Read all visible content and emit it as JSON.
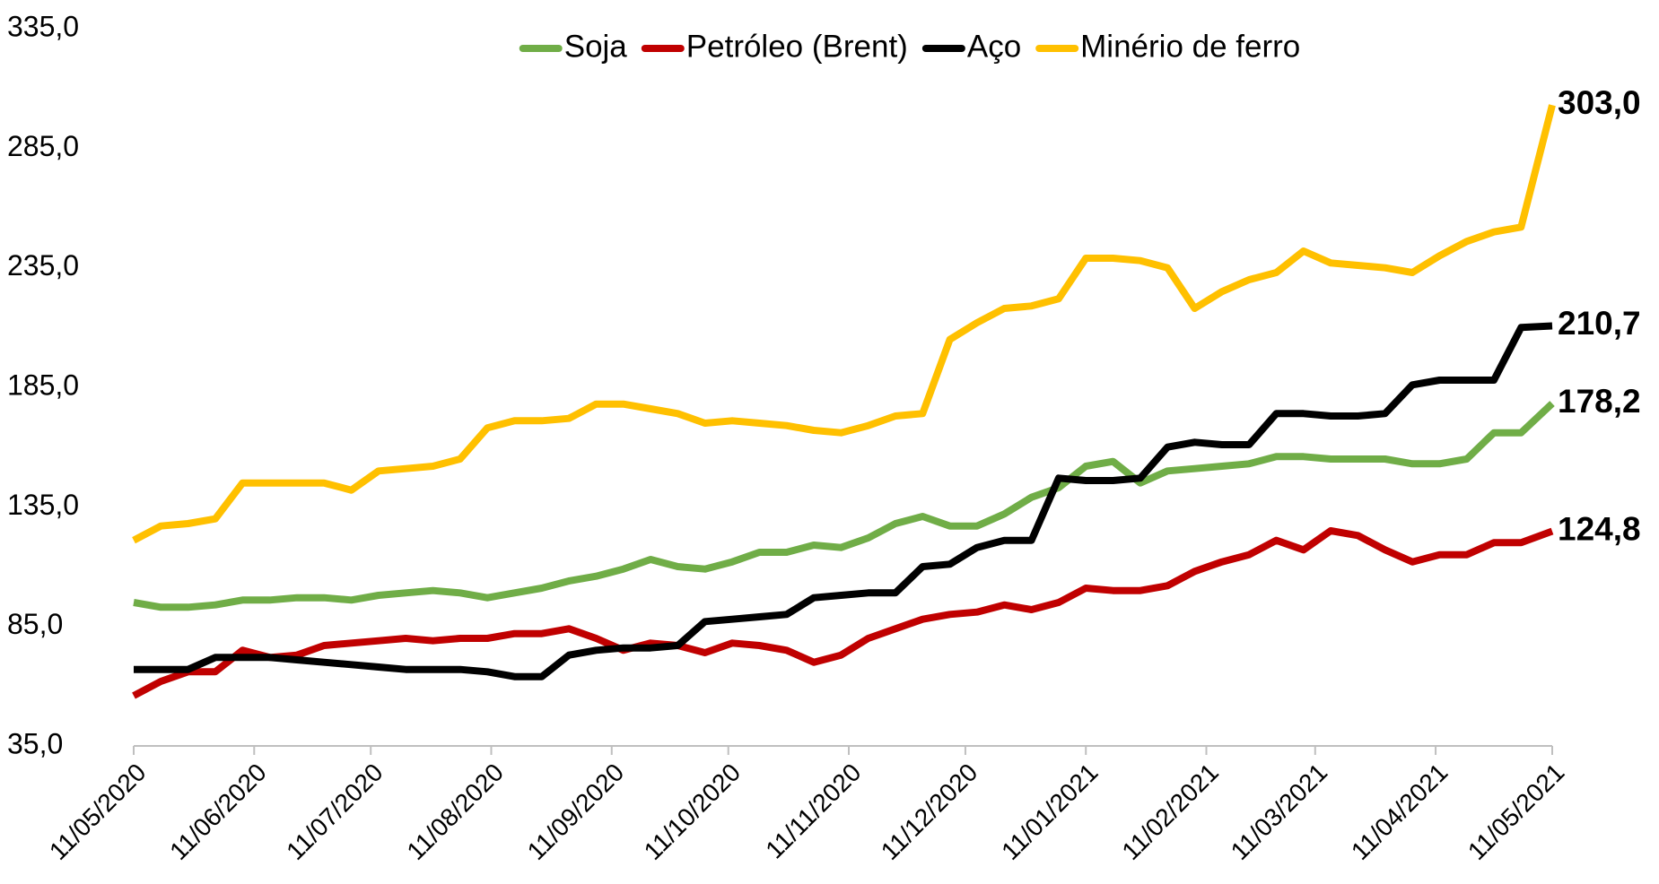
{
  "chart_data": {
    "type": "line",
    "x": [
      "11/05/2020",
      "18/05/2020",
      "25/05/2020",
      "01/06/2020",
      "08/06/2020",
      "15/06/2020",
      "22/06/2020",
      "29/06/2020",
      "06/07/2020",
      "13/07/2020",
      "20/07/2020",
      "27/07/2020",
      "03/08/2020",
      "10/08/2020",
      "17/08/2020",
      "24/08/2020",
      "31/08/2020",
      "07/09/2020",
      "14/09/2020",
      "21/09/2020",
      "28/09/2020",
      "05/10/2020",
      "12/10/2020",
      "19/10/2020",
      "26/10/2020",
      "02/11/2020",
      "09/11/2020",
      "16/11/2020",
      "23/11/2020",
      "30/11/2020",
      "07/12/2020",
      "14/12/2020",
      "21/12/2020",
      "28/12/2020",
      "04/01/2021",
      "11/01/2021",
      "18/01/2021",
      "25/01/2021",
      "01/02/2021",
      "08/02/2021",
      "15/02/2021",
      "22/02/2021",
      "01/03/2021",
      "08/03/2021",
      "15/03/2021",
      "22/03/2021",
      "29/03/2021",
      "05/04/2021",
      "12/04/2021",
      "19/04/2021",
      "26/04/2021",
      "03/05/2021",
      "11/05/2021"
    ],
    "series": [
      {
        "name": "Soja",
        "color": "#70ad47",
        "values": [
          95,
          93,
          93,
          94,
          96,
          96,
          97,
          97,
          96,
          98,
          99,
          100,
          99,
          97,
          99,
          101,
          104,
          106,
          109,
          113,
          110,
          109,
          112,
          116,
          116,
          119,
          118,
          122,
          128,
          131,
          127,
          127,
          132,
          139,
          143,
          152,
          154,
          145,
          150,
          151,
          152,
          153,
          156,
          156,
          155,
          155,
          155,
          153,
          153,
          155,
          166,
          166,
          178.2
        ],
        "value_labels": [
          null,
          null,
          null,
          null,
          null,
          null,
          null,
          null,
          null,
          null,
          null,
          null,
          null,
          null,
          null,
          null,
          null,
          null,
          null,
          null,
          null,
          null,
          null,
          null,
          null,
          null,
          null,
          null,
          null,
          null,
          null,
          null,
          null,
          null,
          null,
          null,
          null,
          null,
          null,
          null,
          null,
          null,
          null,
          null,
          null,
          null,
          null,
          null,
          null,
          null,
          null,
          null,
          "178,2"
        ]
      },
      {
        "name": "Petróleo (Brent)",
        "color": "#c00000",
        "values": [
          56,
          62,
          66,
          66,
          75,
          72,
          73,
          77,
          78,
          79,
          80,
          79,
          80,
          80,
          82,
          82,
          84,
          80,
          75,
          78,
          77,
          74,
          78,
          77,
          75,
          70,
          73,
          80,
          84,
          88,
          90,
          91,
          94,
          92,
          95,
          101,
          100,
          100,
          102,
          108,
          112,
          115,
          121,
          117,
          125,
          123,
          117,
          112,
          115,
          115,
          120,
          120,
          124.8
        ],
        "value_labels": [
          null,
          null,
          null,
          null,
          null,
          null,
          null,
          null,
          null,
          null,
          null,
          null,
          null,
          null,
          null,
          null,
          null,
          null,
          null,
          null,
          null,
          null,
          null,
          null,
          null,
          null,
          null,
          null,
          null,
          null,
          null,
          null,
          null,
          null,
          null,
          null,
          null,
          null,
          null,
          null,
          null,
          null,
          null,
          null,
          null,
          null,
          null,
          null,
          null,
          null,
          null,
          null,
          "124,8"
        ]
      },
      {
        "name": "Aço",
        "color": "#000000",
        "values": [
          67,
          67,
          67,
          72,
          72,
          72,
          71,
          70,
          69,
          68,
          67,
          67,
          67,
          66,
          64,
          64,
          73,
          75,
          76,
          76,
          77,
          87,
          88,
          89,
          90,
          97,
          98,
          99,
          99,
          110,
          111,
          118,
          121,
          121,
          147,
          146,
          146,
          147,
          160,
          162,
          161,
          161,
          174,
          174,
          173,
          173,
          174,
          186,
          188,
          188,
          188,
          210,
          210.7
        ],
        "value_labels": [
          null,
          null,
          null,
          null,
          null,
          null,
          null,
          null,
          null,
          null,
          null,
          null,
          null,
          null,
          null,
          null,
          null,
          null,
          null,
          null,
          null,
          null,
          null,
          null,
          null,
          null,
          null,
          null,
          null,
          null,
          null,
          null,
          null,
          null,
          null,
          null,
          null,
          null,
          null,
          null,
          null,
          null,
          null,
          null,
          null,
          null,
          null,
          null,
          null,
          null,
          null,
          null,
          "210,7"
        ]
      },
      {
        "name": "Minério de ferro",
        "color": "#ffc000",
        "values": [
          121,
          127,
          128,
          130,
          145,
          145,
          145,
          145,
          142,
          150,
          151,
          152,
          155,
          168,
          171,
          171,
          172,
          178,
          178,
          176,
          174,
          170,
          171,
          170,
          169,
          167,
          166,
          169,
          173,
          174,
          205,
          212,
          218,
          219,
          222,
          239,
          239,
          238,
          235,
          218,
          225,
          230,
          233,
          242,
          237,
          236,
          235,
          233,
          240,
          246,
          250,
          252,
          303
        ],
        "value_labels": [
          null,
          null,
          null,
          null,
          null,
          null,
          null,
          null,
          null,
          null,
          null,
          null,
          null,
          null,
          null,
          null,
          null,
          null,
          null,
          null,
          null,
          null,
          null,
          null,
          null,
          null,
          null,
          null,
          null,
          null,
          null,
          null,
          null,
          null,
          null,
          null,
          null,
          null,
          null,
          null,
          null,
          null,
          null,
          null,
          null,
          null,
          null,
          null,
          null,
          null,
          null,
          null,
          "303,0"
        ]
      }
    ],
    "xlim": [
      "11/05/2020",
      "11/05/2021"
    ],
    "xticks": [
      "11/05/2020",
      "11/06/2020",
      "11/07/2020",
      "11/08/2020",
      "11/09/2020",
      "11/10/2020",
      "11/11/2020",
      "11/12/2020",
      "11/01/2021",
      "11/02/2021",
      "11/03/2021",
      "11/04/2021",
      "11/05/2021"
    ],
    "ylim": [
      35,
      335
    ],
    "yticks": [
      {
        "value": 35,
        "label": "35,0"
      },
      {
        "value": 85,
        "label": "85,0"
      },
      {
        "value": 135,
        "label": "135,0"
      },
      {
        "value": 185,
        "label": "185,0"
      },
      {
        "value": 235,
        "label": "235,0"
      },
      {
        "value": 285,
        "label": "285,0"
      },
      {
        "value": 335,
        "label": "335,0"
      }
    ],
    "grid": false,
    "legend": "top"
  }
}
